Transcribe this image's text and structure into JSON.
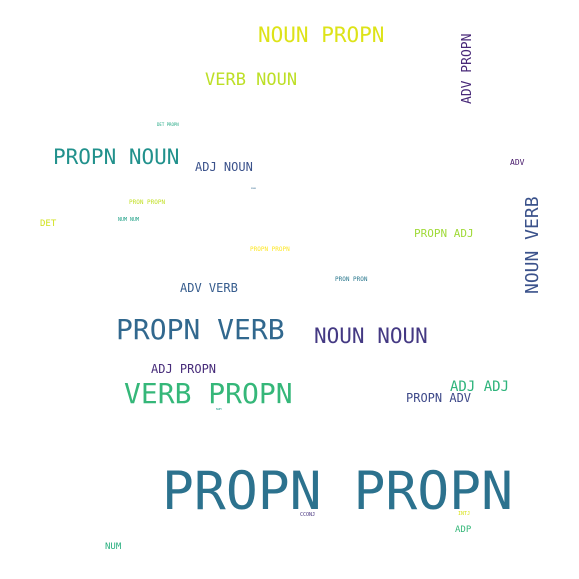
{
  "words": [
    {
      "text": "PROPN PROPN",
      "color": "#2c728e"
    },
    {
      "text": "PROPN VERB",
      "color": "#31688e"
    },
    {
      "text": "VERB PROPN",
      "color": "#35b779"
    },
    {
      "text": "NOUN PROPN",
      "color": "#dde318"
    },
    {
      "text": "PROPN NOUN",
      "color": "#21918c"
    },
    {
      "text": "NOUN NOUN",
      "color": "#443983"
    },
    {
      "text": "NOUN VERB",
      "color": "#3b528b"
    },
    {
      "text": "VERB NOUN",
      "color": "#bddf26"
    },
    {
      "text": "ADV PROPN",
      "color": "#482878"
    },
    {
      "text": "ADJ ADJ",
      "color": "#2fb47c"
    },
    {
      "text": "PROPN ADV",
      "color": "#3e4989"
    },
    {
      "text": "ADJ PROPN",
      "color": "#472c7a"
    },
    {
      "text": "ADV VERB",
      "color": "#365c8d"
    },
    {
      "text": "ADJ NOUN",
      "color": "#3b528b"
    },
    {
      "text": "PROPN ADJ",
      "color": "#a0da39"
    },
    {
      "text": "ADV",
      "color": "#481a6c"
    },
    {
      "text": "DET",
      "color": "#d0e11c"
    },
    {
      "text": "NUM",
      "color": "#29af7f"
    },
    {
      "text": "ADP",
      "color": "#35b779"
    },
    {
      "text": "PROPN PROPN",
      "color": "#fde725"
    },
    {
      "text": "PRON PRON",
      "color": "#2a788e"
    },
    {
      "text": "PRON PROPN",
      "color": "#c2df23"
    },
    {
      "text": "NUM NUM",
      "color": "#1fa187"
    },
    {
      "text": "DET PROPN",
      "color": "#22a884"
    },
    {
      "text": "CCONJ",
      "color": "#46327e"
    },
    {
      "text": "INTJ",
      "color": "#d8e219"
    },
    {
      "text": "NUM",
      "color": "#1e9b8a"
    },
    {
      "text": "PRON",
      "color": "#31688e"
    }
  ]
}
